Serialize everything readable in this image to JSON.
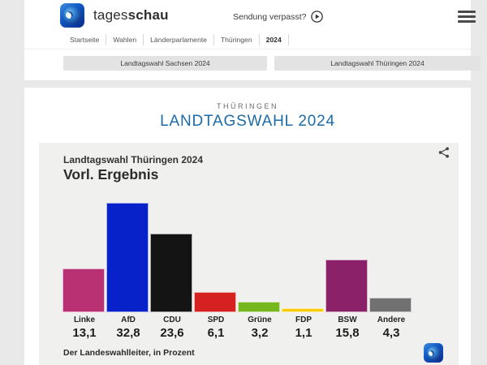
{
  "header": {
    "brand_regular": "tages",
    "brand_bold": "schau",
    "sendung_verpasst": "Sendung verpasst?",
    "icons": {
      "play": "play-circle",
      "menu": "hamburger"
    }
  },
  "breadcrumb": {
    "items": [
      {
        "label": "Startseite",
        "bold": false
      },
      {
        "label": "Wahlen",
        "bold": false
      },
      {
        "label": "Länderparlamente",
        "bold": false
      },
      {
        "label": "Thüringen",
        "bold": false
      },
      {
        "label": "2024",
        "bold": true
      }
    ]
  },
  "quick_links": {
    "buttons": [
      "Landtagswahl Sachsen 2024",
      "Landtagswahl Thüringen 2024"
    ]
  },
  "main": {
    "kicker": "THÜRINGEN",
    "title": "LANDTAGSWAHL 2024",
    "title_color": "#1c6aa6"
  },
  "chart": {
    "subtitle": "Landtagswahl Thüringen 2024",
    "title": "Vorl. Ergebnis",
    "source": "Der Landeswahlleiter, in Prozent",
    "share_icon": "share-nodes"
  },
  "chart_data": {
    "type": "bar",
    "title": "Landtagswahl Thüringen 2024 — Vorl. Ergebnis",
    "categories": [
      "Linke",
      "AfD",
      "CDU",
      "SPD",
      "Grüne",
      "FDP",
      "BSW",
      "Andere"
    ],
    "values": [
      13.1,
      32.8,
      23.6,
      6.1,
      3.2,
      1.1,
      15.8,
      4.3
    ],
    "value_labels": [
      "13,1",
      "32,8",
      "23,6",
      "6,1",
      "3,2",
      "1,1",
      "15,8",
      "4,3"
    ],
    "colors": [
      "#b93073",
      "#0722c8",
      "#141414",
      "#d52120",
      "#76b71e",
      "#f8ca00",
      "#8b2168",
      "#717171"
    ],
    "unit": "Prozent",
    "ylim": [
      0,
      35
    ],
    "grid": false,
    "legend": false,
    "source": "Der Landeswahlleiter"
  }
}
